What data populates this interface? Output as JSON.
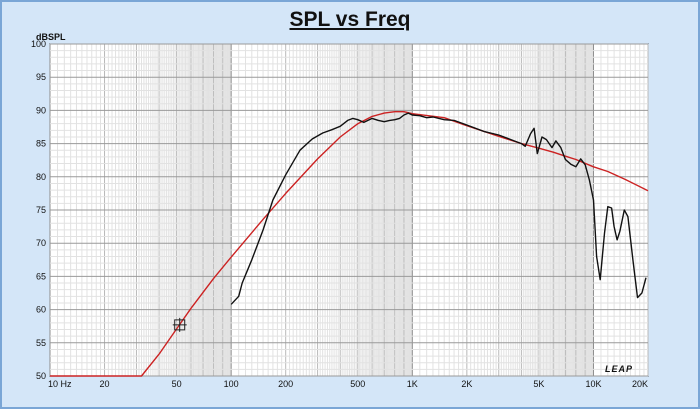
{
  "chart_data": {
    "type": "line",
    "title": "SPL vs Freq",
    "ylabel": "dBSPL",
    "xscale": "log",
    "xlim": [
      10,
      20000
    ],
    "ylim": [
      50,
      100
    ],
    "grid": true,
    "legend": "none",
    "x_tick_labels": [
      {
        "v": 10,
        "label": "10  Hz"
      },
      {
        "v": 20,
        "label": "20"
      },
      {
        "v": 50,
        "label": "50"
      },
      {
        "v": 100,
        "label": "100"
      },
      {
        "v": 200,
        "label": "200"
      },
      {
        "v": 500,
        "label": "500"
      },
      {
        "v": 1000,
        "label": "1K"
      },
      {
        "v": 2000,
        "label": "2K"
      },
      {
        "v": 5000,
        "label": "5K"
      },
      {
        "v": 10000,
        "label": "10K"
      },
      {
        "v": 20000,
        "label": "20K"
      }
    ],
    "y_ticks": [
      100,
      95,
      90,
      85,
      80,
      75,
      70,
      65,
      60,
      55,
      50
    ],
    "series": [
      {
        "color": "#cc2222",
        "points": [
          [
            10,
            50
          ],
          [
            32,
            50
          ],
          [
            40,
            53.3
          ],
          [
            50,
            57.1
          ],
          [
            60,
            60.2
          ],
          [
            80,
            64.7
          ],
          [
            100,
            67.9
          ],
          [
            150,
            73.6
          ],
          [
            200,
            77.5
          ],
          [
            300,
            82.7
          ],
          [
            400,
            86.0
          ],
          [
            500,
            88.0
          ],
          [
            600,
            89.1
          ],
          [
            700,
            89.6
          ],
          [
            800,
            89.8
          ],
          [
            900,
            89.8
          ],
          [
            1000,
            89.5
          ],
          [
            1500,
            88.9
          ],
          [
            2000,
            87.7
          ],
          [
            3000,
            86.1
          ],
          [
            4000,
            85.0
          ],
          [
            5000,
            84.3
          ],
          [
            6000,
            83.7
          ],
          [
            7000,
            83.1
          ],
          [
            8000,
            82.6
          ],
          [
            10000,
            81.5
          ],
          [
            12000,
            80.8
          ],
          [
            15000,
            79.6
          ],
          [
            20000,
            77.9
          ]
        ]
      },
      {
        "color": "#111111",
        "points": [
          [
            100,
            60.8
          ],
          [
            110,
            62.0
          ],
          [
            115,
            64.0
          ],
          [
            130,
            67.5
          ],
          [
            150,
            72.0
          ],
          [
            170,
            76.5
          ],
          [
            200,
            80.3
          ],
          [
            240,
            84.0
          ],
          [
            280,
            85.7
          ],
          [
            320,
            86.6
          ],
          [
            360,
            87.1
          ],
          [
            400,
            87.6
          ],
          [
            440,
            88.5
          ],
          [
            470,
            88.8
          ],
          [
            500,
            88.6
          ],
          [
            540,
            88.2
          ],
          [
            600,
            88.8
          ],
          [
            650,
            88.5
          ],
          [
            700,
            88.3
          ],
          [
            750,
            88.5
          ],
          [
            800,
            88.6
          ],
          [
            850,
            88.8
          ],
          [
            900,
            89.3
          ],
          [
            950,
            89.6
          ],
          [
            1000,
            89.3
          ],
          [
            1100,
            89.2
          ],
          [
            1200,
            88.9
          ],
          [
            1300,
            89.0
          ],
          [
            1500,
            88.6
          ],
          [
            1700,
            88.5
          ],
          [
            2000,
            87.8
          ],
          [
            2500,
            86.8
          ],
          [
            3000,
            86.3
          ],
          [
            3500,
            85.6
          ],
          [
            4000,
            85.0
          ],
          [
            4200,
            84.6
          ],
          [
            4500,
            86.5
          ],
          [
            4700,
            87.3
          ],
          [
            4900,
            83.5
          ],
          [
            5200,
            86.0
          ],
          [
            5500,
            85.6
          ],
          [
            5900,
            84.4
          ],
          [
            6200,
            85.4
          ],
          [
            6600,
            84.4
          ],
          [
            7000,
            82.6
          ],
          [
            7500,
            81.9
          ],
          [
            8000,
            81.5
          ],
          [
            8500,
            82.7
          ],
          [
            9000,
            81.8
          ],
          [
            9500,
            79.5
          ],
          [
            10000,
            76.5
          ],
          [
            10400,
            68.0
          ],
          [
            10900,
            64.5
          ],
          [
            11500,
            71.5
          ],
          [
            12000,
            75.5
          ],
          [
            12600,
            75.3
          ],
          [
            13000,
            72.5
          ],
          [
            13500,
            70.5
          ],
          [
            14000,
            71.8
          ],
          [
            14800,
            75.0
          ],
          [
            15500,
            74.0
          ],
          [
            16500,
            67.5
          ],
          [
            17500,
            61.8
          ],
          [
            18500,
            62.5
          ],
          [
            19500,
            64.8
          ]
        ]
      }
    ]
  },
  "logo_text": "LEAP"
}
